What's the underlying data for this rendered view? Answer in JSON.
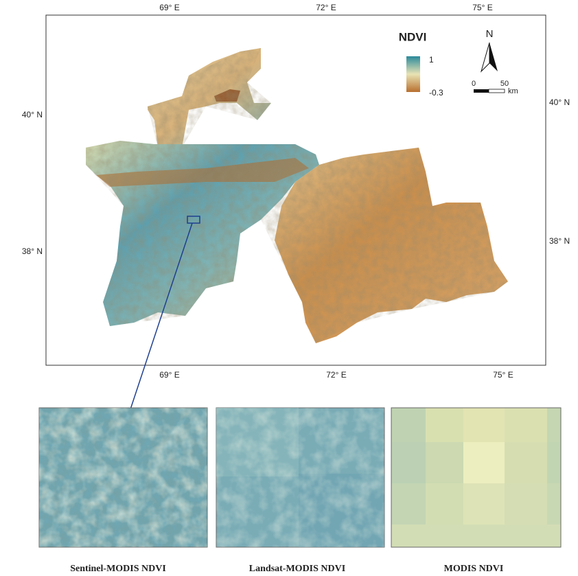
{
  "map": {
    "lon_labels_top": [
      "69° E",
      "72° E",
      "75° E"
    ],
    "lon_labels_bottom": [
      "69° E",
      "72° E",
      "75° E"
    ],
    "lat_labels_left": [
      "40° N",
      "38° N"
    ],
    "lat_labels_right": [
      "40° N",
      "38° N"
    ],
    "legend": {
      "title": "NDVI",
      "max": 1,
      "min": -0.3
    },
    "north_arrow": "N",
    "scale_bar": {
      "ticks": [
        0,
        50
      ],
      "unit": "km"
    }
  },
  "panels": [
    {
      "caption": "Sentinel-MODIS NDVI"
    },
    {
      "caption": "Landsat-MODIS NDVI"
    },
    {
      "caption": "MODIS NDVI"
    }
  ]
}
